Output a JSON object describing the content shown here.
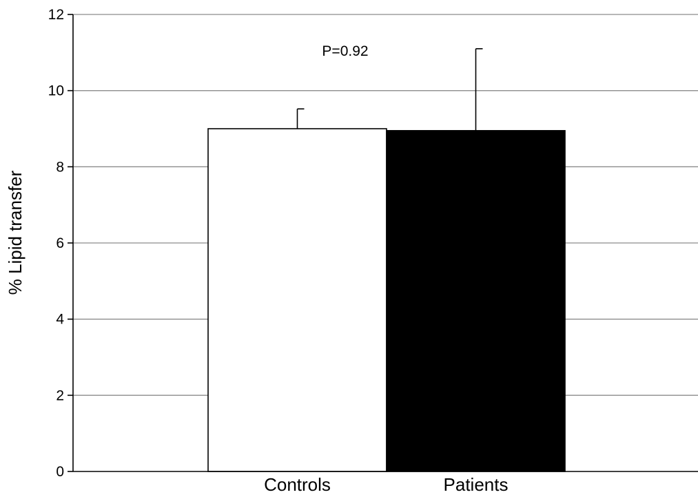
{
  "chart_data": {
    "type": "bar",
    "title": "",
    "xlabel": "",
    "ylabel": "% Lipid transfer",
    "ylim": [
      0,
      12
    ],
    "yticks": [
      0,
      2,
      4,
      6,
      8,
      10,
      12
    ],
    "grid": true,
    "categories": [
      "Controls",
      "Patients"
    ],
    "values": [
      9.0,
      8.95
    ],
    "error_upper": [
      0.52,
      2.15
    ],
    "bar_colors": [
      "#ffffff",
      "#000000"
    ],
    "annotations": [
      {
        "text": "P=0.92"
      }
    ]
  }
}
